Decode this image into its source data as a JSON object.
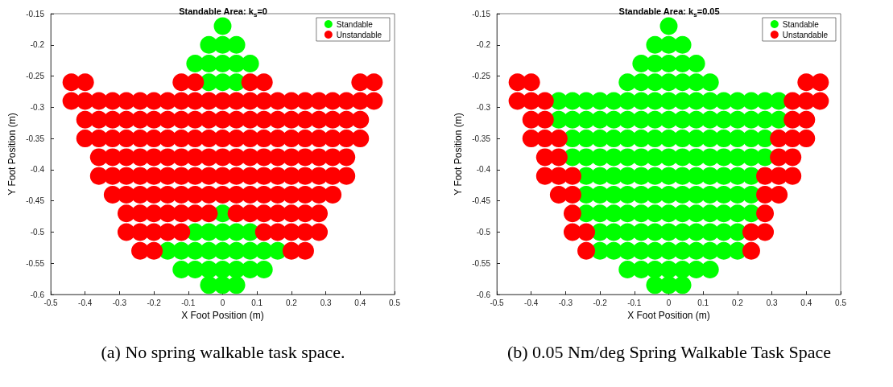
{
  "chart_data": [
    {
      "type": "scatter",
      "title": "Standable Area: k$_{s}$=0",
      "xlabel": "X Foot Position (m)",
      "ylabel": "Y Foot Position (m)",
      "xlim": [
        -0.5,
        0.5
      ],
      "xticks": [
        -0.5,
        -0.4,
        -0.3,
        -0.2,
        -0.1,
        0,
        0.1,
        0.2,
        0.3,
        0.4,
        0.5
      ],
      "ylim": [
        -0.6,
        -0.15
      ],
      "yticks": [
        -0.6,
        -0.55,
        -0.5,
        -0.45,
        -0.4,
        -0.35,
        -0.3,
        -0.25,
        -0.2,
        -0.15
      ],
      "legend": "top right",
      "marker": "circle",
      "annotations": [
        "(a) No spring walkable task space."
      ],
      "series": [
        {
          "name": "Standable",
          "color": "#00ff00",
          "x": [
            0,
            -0.04,
            0,
            0.04,
            -0.08,
            -0.04,
            0,
            0.04,
            0.08,
            -0.04,
            0,
            0.04,
            0,
            -0.08,
            -0.04,
            0,
            0.04,
            0.08,
            -0.16,
            -0.12,
            -0.08,
            -0.04,
            0,
            0.04,
            0.08,
            0.12,
            0.16,
            -0.12,
            -0.08,
            -0.04,
            0,
            0.04,
            0.08,
            0.12,
            -0.04,
            0,
            0.04
          ],
          "values": [
            -0.17,
            -0.2,
            -0.2,
            -0.2,
            -0.23,
            -0.23,
            -0.23,
            -0.23,
            -0.23,
            -0.26,
            -0.26,
            -0.26,
            -0.47,
            -0.5,
            -0.5,
            -0.5,
            -0.5,
            -0.5,
            -0.53,
            -0.53,
            -0.53,
            -0.53,
            -0.53,
            -0.53,
            -0.53,
            -0.53,
            -0.53,
            -0.56,
            -0.56,
            -0.56,
            -0.56,
            -0.56,
            -0.56,
            -0.56,
            -0.585,
            -0.585,
            -0.585
          ]
        },
        {
          "name": "Unstandable",
          "color": "#ff0000",
          "x": [
            -0.44,
            -0.4,
            -0.12,
            -0.08,
            0.08,
            0.12,
            0.4,
            0.44,
            -0.44,
            -0.4,
            -0.36,
            -0.32,
            -0.28,
            -0.24,
            -0.2,
            -0.16,
            -0.12,
            -0.08,
            -0.04,
            0,
            0.04,
            0.08,
            0.12,
            0.16,
            0.2,
            0.24,
            0.28,
            0.32,
            0.36,
            0.4,
            0.44,
            -0.4,
            -0.36,
            -0.32,
            -0.28,
            -0.24,
            -0.2,
            -0.16,
            -0.12,
            -0.08,
            -0.04,
            0,
            0.04,
            0.08,
            0.12,
            0.16,
            0.2,
            0.24,
            0.28,
            0.32,
            0.36,
            0.4,
            -0.4,
            -0.36,
            -0.32,
            -0.28,
            -0.24,
            -0.2,
            -0.16,
            -0.12,
            -0.08,
            -0.04,
            0,
            0.04,
            0.08,
            0.12,
            0.16,
            0.2,
            0.24,
            0.28,
            0.32,
            0.36,
            0.4,
            -0.36,
            -0.32,
            -0.28,
            -0.24,
            -0.2,
            -0.16,
            -0.12,
            -0.08,
            -0.04,
            0,
            0.04,
            0.08,
            0.12,
            0.16,
            0.2,
            0.24,
            0.28,
            0.32,
            0.36,
            -0.36,
            -0.32,
            -0.28,
            -0.24,
            -0.2,
            -0.16,
            -0.12,
            -0.08,
            -0.04,
            0,
            0.04,
            0.08,
            0.12,
            0.16,
            0.2,
            0.24,
            0.28,
            0.32,
            0.36,
            -0.32,
            -0.28,
            -0.24,
            -0.2,
            -0.16,
            -0.12,
            -0.08,
            -0.04,
            0,
            0.04,
            0.08,
            0.12,
            0.16,
            0.2,
            0.24,
            0.28,
            0.32,
            -0.28,
            -0.24,
            -0.2,
            -0.16,
            -0.12,
            -0.08,
            -0.04,
            0.04,
            0.08,
            0.12,
            0.16,
            0.2,
            0.24,
            0.28,
            -0.28,
            -0.24,
            -0.2,
            -0.16,
            -0.12,
            0.12,
            0.16,
            0.2,
            0.24,
            0.28,
            -0.24,
            -0.2,
            0.2,
            0.24
          ],
          "values": [
            -0.26,
            -0.26,
            -0.26,
            -0.26,
            -0.26,
            -0.26,
            -0.26,
            -0.26,
            -0.29,
            -0.29,
            -0.29,
            -0.29,
            -0.29,
            -0.29,
            -0.29,
            -0.29,
            -0.29,
            -0.29,
            -0.29,
            -0.29,
            -0.29,
            -0.29,
            -0.29,
            -0.29,
            -0.29,
            -0.29,
            -0.29,
            -0.29,
            -0.29,
            -0.29,
            -0.29,
            -0.32,
            -0.32,
            -0.32,
            -0.32,
            -0.32,
            -0.32,
            -0.32,
            -0.32,
            -0.32,
            -0.32,
            -0.32,
            -0.32,
            -0.32,
            -0.32,
            -0.32,
            -0.32,
            -0.32,
            -0.32,
            -0.32,
            -0.32,
            -0.32,
            -0.35,
            -0.35,
            -0.35,
            -0.35,
            -0.35,
            -0.35,
            -0.35,
            -0.35,
            -0.35,
            -0.35,
            -0.35,
            -0.35,
            -0.35,
            -0.35,
            -0.35,
            -0.35,
            -0.35,
            -0.35,
            -0.35,
            -0.35,
            -0.35,
            -0.38,
            -0.38,
            -0.38,
            -0.38,
            -0.38,
            -0.38,
            -0.38,
            -0.38,
            -0.38,
            -0.38,
            -0.38,
            -0.38,
            -0.38,
            -0.38,
            -0.38,
            -0.38,
            -0.38,
            -0.38,
            -0.38,
            -0.41,
            -0.41,
            -0.41,
            -0.41,
            -0.41,
            -0.41,
            -0.41,
            -0.41,
            -0.41,
            -0.41,
            -0.41,
            -0.41,
            -0.41,
            -0.41,
            -0.41,
            -0.41,
            -0.41,
            -0.41,
            -0.41,
            -0.44,
            -0.44,
            -0.44,
            -0.44,
            -0.44,
            -0.44,
            -0.44,
            -0.44,
            -0.44,
            -0.44,
            -0.44,
            -0.44,
            -0.44,
            -0.44,
            -0.44,
            -0.44,
            -0.44,
            -0.47,
            -0.47,
            -0.47,
            -0.47,
            -0.47,
            -0.47,
            -0.47,
            -0.47,
            -0.47,
            -0.47,
            -0.47,
            -0.47,
            -0.47,
            -0.47,
            -0.5,
            -0.5,
            -0.5,
            -0.5,
            -0.5,
            -0.5,
            -0.5,
            -0.5,
            -0.5,
            -0.5,
            -0.53,
            -0.53,
            -0.53,
            -0.53
          ]
        }
      ]
    },
    {
      "type": "scatter",
      "title": "Standable Area: k$_{s}$=0.05",
      "xlabel": "X Foot Position (m)",
      "ylabel": "Y Foot Position (m)",
      "xlim": [
        -0.5,
        0.5
      ],
      "xticks": [
        -0.5,
        -0.4,
        -0.3,
        -0.2,
        -0.1,
        0,
        0.1,
        0.2,
        0.3,
        0.4,
        0.5
      ],
      "ylim": [
        -0.6,
        -0.15
      ],
      "yticks": [
        -0.6,
        -0.55,
        -0.5,
        -0.45,
        -0.4,
        -0.35,
        -0.3,
        -0.25,
        -0.2,
        -0.15
      ],
      "legend": "top right",
      "marker": "circle",
      "annotations": [
        "(b) 0.05 Nm/deg Spring Walkable Task Space"
      ],
      "series": [
        {
          "name": "Standable",
          "color": "#00ff00",
          "x": [
            0,
            -0.04,
            0,
            0.04,
            -0.08,
            -0.04,
            0,
            0.04,
            0.08,
            -0.12,
            -0.08,
            -0.04,
            0,
            0.04,
            0.08,
            0.12,
            -0.32,
            -0.28,
            -0.24,
            -0.2,
            -0.16,
            -0.12,
            -0.08,
            -0.04,
            0,
            0.04,
            0.08,
            0.12,
            0.16,
            0.2,
            0.24,
            0.28,
            0.32,
            -0.32,
            -0.28,
            -0.24,
            -0.2,
            -0.16,
            -0.12,
            -0.08,
            -0.04,
            0,
            0.04,
            0.08,
            0.12,
            0.16,
            0.2,
            0.24,
            0.28,
            0.32,
            -0.28,
            -0.24,
            -0.2,
            -0.16,
            -0.12,
            -0.08,
            -0.04,
            0,
            0.04,
            0.08,
            0.12,
            0.16,
            0.2,
            0.24,
            0.28,
            -0.28,
            -0.24,
            -0.2,
            -0.16,
            -0.12,
            -0.08,
            -0.04,
            0,
            0.04,
            0.08,
            0.12,
            0.16,
            0.2,
            0.24,
            0.28,
            -0.24,
            -0.2,
            -0.16,
            -0.12,
            -0.08,
            -0.04,
            0,
            0.04,
            0.08,
            0.12,
            0.16,
            0.2,
            0.24,
            -0.24,
            -0.2,
            -0.16,
            -0.12,
            -0.08,
            -0.04,
            0,
            0.04,
            0.08,
            0.12,
            0.16,
            0.2,
            0.24,
            -0.24,
            -0.2,
            -0.16,
            -0.12,
            -0.08,
            -0.04,
            0,
            0.04,
            0.08,
            0.12,
            0.16,
            0.2,
            0.24,
            -0.2,
            -0.16,
            -0.12,
            -0.08,
            -0.04,
            0,
            0.04,
            0.08,
            0.12,
            0.16,
            0.2,
            -0.2,
            -0.16,
            -0.12,
            -0.08,
            -0.04,
            0,
            0.04,
            0.08,
            0.12,
            0.16,
            0.2,
            -0.12,
            -0.08,
            -0.04,
            0,
            0.04,
            0.08,
            0.12,
            -0.04,
            0,
            0.04
          ],
          "values": [
            -0.17,
            -0.2,
            -0.2,
            -0.2,
            -0.23,
            -0.23,
            -0.23,
            -0.23,
            -0.23,
            -0.26,
            -0.26,
            -0.26,
            -0.26,
            -0.26,
            -0.26,
            -0.26,
            -0.29,
            -0.29,
            -0.29,
            -0.29,
            -0.29,
            -0.29,
            -0.29,
            -0.29,
            -0.29,
            -0.29,
            -0.29,
            -0.29,
            -0.29,
            -0.29,
            -0.29,
            -0.29,
            -0.29,
            -0.32,
            -0.32,
            -0.32,
            -0.32,
            -0.32,
            -0.32,
            -0.32,
            -0.32,
            -0.32,
            -0.32,
            -0.32,
            -0.32,
            -0.32,
            -0.32,
            -0.32,
            -0.32,
            -0.32,
            -0.35,
            -0.35,
            -0.35,
            -0.35,
            -0.35,
            -0.35,
            -0.35,
            -0.35,
            -0.35,
            -0.35,
            -0.35,
            -0.35,
            -0.35,
            -0.35,
            -0.35,
            -0.38,
            -0.38,
            -0.38,
            -0.38,
            -0.38,
            -0.38,
            -0.38,
            -0.38,
            -0.38,
            -0.38,
            -0.38,
            -0.38,
            -0.38,
            -0.38,
            -0.38,
            -0.41,
            -0.41,
            -0.41,
            -0.41,
            -0.41,
            -0.41,
            -0.41,
            -0.41,
            -0.41,
            -0.41,
            -0.41,
            -0.41,
            -0.41,
            -0.44,
            -0.44,
            -0.44,
            -0.44,
            -0.44,
            -0.44,
            -0.44,
            -0.44,
            -0.44,
            -0.44,
            -0.44,
            -0.44,
            -0.44,
            -0.47,
            -0.47,
            -0.47,
            -0.47,
            -0.47,
            -0.47,
            -0.47,
            -0.47,
            -0.47,
            -0.47,
            -0.47,
            -0.47,
            -0.47,
            -0.5,
            -0.5,
            -0.5,
            -0.5,
            -0.5,
            -0.5,
            -0.5,
            -0.5,
            -0.5,
            -0.5,
            -0.5,
            -0.53,
            -0.53,
            -0.53,
            -0.53,
            -0.53,
            -0.53,
            -0.53,
            -0.53,
            -0.53,
            -0.53,
            -0.53,
            -0.56,
            -0.56,
            -0.56,
            -0.56,
            -0.56,
            -0.56,
            -0.56,
            -0.585,
            -0.585,
            -0.585
          ]
        },
        {
          "name": "Unstandable",
          "color": "#ff0000",
          "x": [
            -0.44,
            -0.4,
            0.4,
            0.44,
            -0.44,
            -0.4,
            -0.36,
            0.36,
            0.4,
            0.44,
            -0.4,
            -0.36,
            0.36,
            0.4,
            -0.4,
            -0.36,
            -0.32,
            0.32,
            0.36,
            0.4,
            -0.36,
            -0.32,
            0.32,
            0.36,
            -0.36,
            -0.32,
            -0.28,
            0.28,
            0.32,
            0.36,
            -0.32,
            -0.28,
            0.28,
            0.32,
            -0.28,
            0.28,
            -0.28,
            -0.24,
            0.24,
            0.28,
            -0.24,
            0.24
          ],
          "values": [
            -0.26,
            -0.26,
            -0.26,
            -0.26,
            -0.29,
            -0.29,
            -0.29,
            -0.29,
            -0.29,
            -0.29,
            -0.32,
            -0.32,
            -0.32,
            -0.32,
            -0.35,
            -0.35,
            -0.35,
            -0.35,
            -0.35,
            -0.35,
            -0.38,
            -0.38,
            -0.38,
            -0.38,
            -0.41,
            -0.41,
            -0.41,
            -0.41,
            -0.41,
            -0.41,
            -0.44,
            -0.44,
            -0.44,
            -0.44,
            -0.47,
            -0.47,
            -0.5,
            -0.5,
            -0.5,
            -0.5,
            -0.53,
            -0.53
          ]
        }
      ]
    }
  ]
}
